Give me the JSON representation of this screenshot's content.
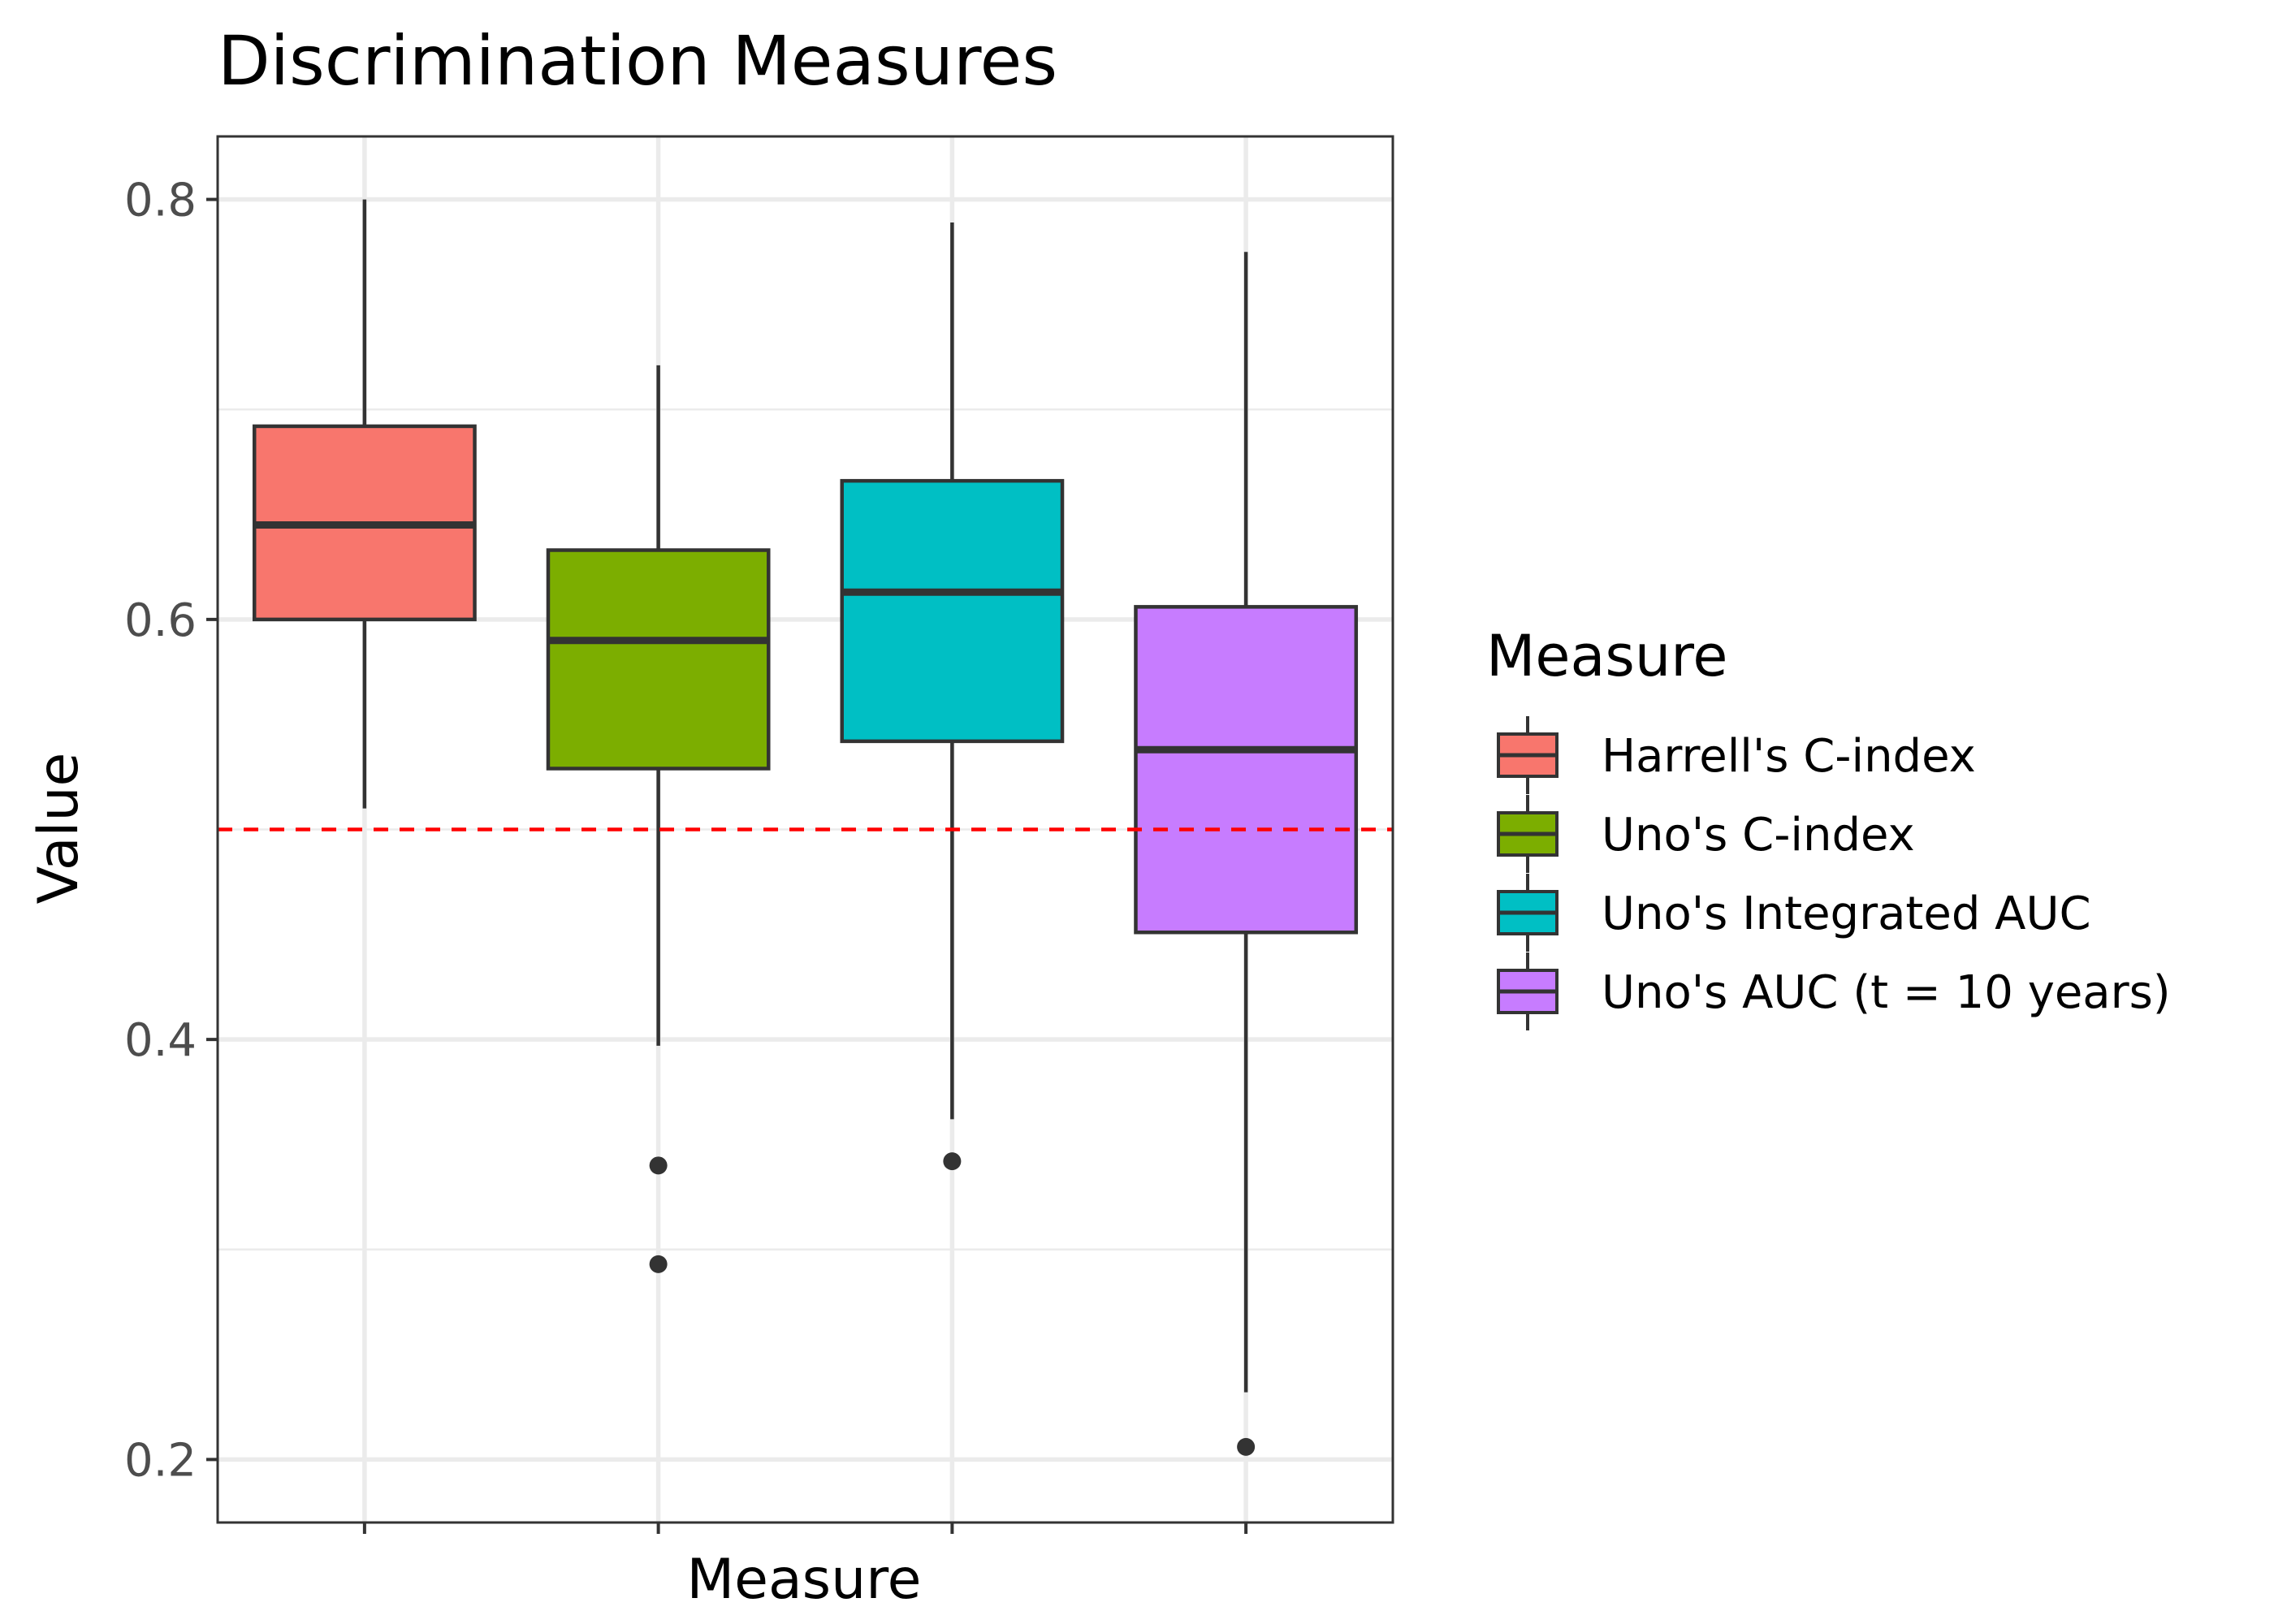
{
  "chart_data": {
    "type": "boxplot",
    "title": "Discrimination Measures",
    "xlabel": "Measure",
    "ylabel": "Value",
    "ylim": [
      0.17,
      0.83
    ],
    "yticks": [
      0.2,
      0.4,
      0.6,
      0.8
    ],
    "ytick_labels": [
      "0.2",
      "0.4",
      "0.6",
      "0.8"
    ],
    "grid": true,
    "reference_line": {
      "y": 0.5,
      "color": "#ff0000",
      "style": "dashed"
    },
    "legend": {
      "title": "Measure",
      "position": "right",
      "entries": [
        "Harrell's C-index",
        "Uno's C-index",
        "Uno's Integrated AUC",
        "Uno's AUC (t = 10 years)"
      ]
    },
    "series": [
      {
        "name": "Harrell's C-index",
        "color": "#f8766d",
        "whisker_low": 0.51,
        "q1": 0.6,
        "median": 0.645,
        "q3": 0.692,
        "whisker_high": 0.8,
        "outliers": []
      },
      {
        "name": "Uno's C-index",
        "color": "#7cae00",
        "whisker_low": 0.397,
        "q1": 0.529,
        "median": 0.59,
        "q3": 0.633,
        "whisker_high": 0.721,
        "outliers": [
          0.34,
          0.293
        ]
      },
      {
        "name": "Uno's Integrated AUC",
        "color": "#00bfc4",
        "whisker_low": 0.362,
        "q1": 0.542,
        "median": 0.613,
        "q3": 0.666,
        "whisker_high": 0.789,
        "outliers": [
          0.342
        ]
      },
      {
        "name": "Uno's AUC (t = 10 years)",
        "color": "#c77cff",
        "whisker_low": 0.232,
        "q1": 0.451,
        "median": 0.538,
        "q3": 0.606,
        "whisker_high": 0.775,
        "outliers": [
          0.206
        ]
      }
    ]
  }
}
